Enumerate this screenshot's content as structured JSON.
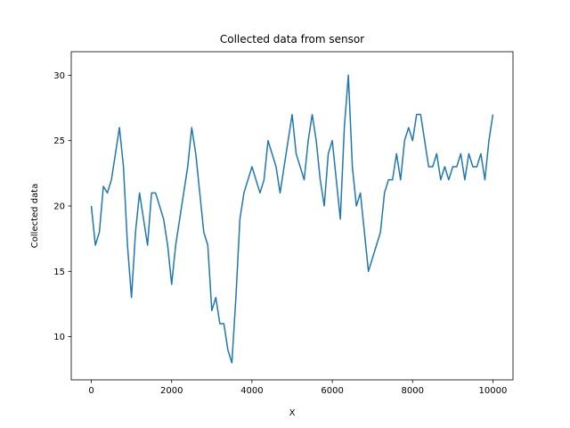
{
  "chart_data": {
    "type": "line",
    "title": "Collected data from sensor",
    "x_label": "X",
    "y_label": "Collected data",
    "x": [
      0,
      100,
      200,
      300,
      400,
      500,
      600,
      700,
      800,
      900,
      1000,
      1100,
      1200,
      1300,
      1400,
      1500,
      1600,
      1700,
      1800,
      1900,
      2000,
      2100,
      2200,
      2300,
      2400,
      2500,
      2600,
      2700,
      2800,
      2900,
      3000,
      3100,
      3200,
      3300,
      3400,
      3500,
      3600,
      3700,
      3800,
      3900,
      4000,
      4100,
      4200,
      4300,
      4400,
      4500,
      4600,
      4700,
      4800,
      4900,
      5000,
      5100,
      5200,
      5300,
      5400,
      5500,
      5600,
      5700,
      5800,
      5900,
      6000,
      6100,
      6200,
      6300,
      6400,
      6500,
      6600,
      6700,
      6800,
      6900,
      7000,
      7100,
      7200,
      7300,
      7400,
      7500,
      7600,
      7700,
      7800,
      7900,
      8000,
      8100,
      8200,
      8300,
      8400,
      8500,
      8600,
      8700,
      8800,
      8900,
      9000,
      9100,
      9200,
      9300,
      9400,
      9500,
      9600,
      9700,
      9800,
      9900,
      10000
    ],
    "series": [
      {
        "name": "Collected data",
        "color": "#1f77b4",
        "values": [
          20,
          17,
          18,
          21.5,
          21,
          22,
          24,
          26,
          23,
          17,
          13,
          18,
          21,
          19,
          17,
          21,
          21,
          20,
          19,
          17,
          14,
          17,
          19,
          21,
          23,
          26,
          24,
          21,
          18,
          17,
          12,
          13,
          11,
          11,
          9,
          8,
          13,
          19,
          21,
          22,
          23,
          22,
          21,
          22,
          25,
          24,
          23,
          21,
          23,
          25,
          27,
          24,
          23,
          22,
          25,
          27,
          25,
          22,
          20,
          24,
          25,
          22,
          19,
          26,
          30,
          23,
          20,
          21,
          18,
          15,
          16,
          17,
          18,
          21,
          22,
          22,
          24,
          22,
          25,
          26,
          25,
          27,
          27,
          25,
          23,
          23,
          24,
          22,
          23,
          22,
          23,
          23,
          24,
          22,
          24,
          23,
          23,
          24,
          22,
          25,
          27
        ]
      }
    ],
    "xlim": [
      -500,
      10500
    ],
    "ylim": [
      6.7,
      31.8
    ],
    "xticks": [
      0,
      2000,
      4000,
      6000,
      8000,
      10000
    ],
    "yticks": [
      10,
      15,
      20,
      25,
      30
    ],
    "grid": false
  }
}
